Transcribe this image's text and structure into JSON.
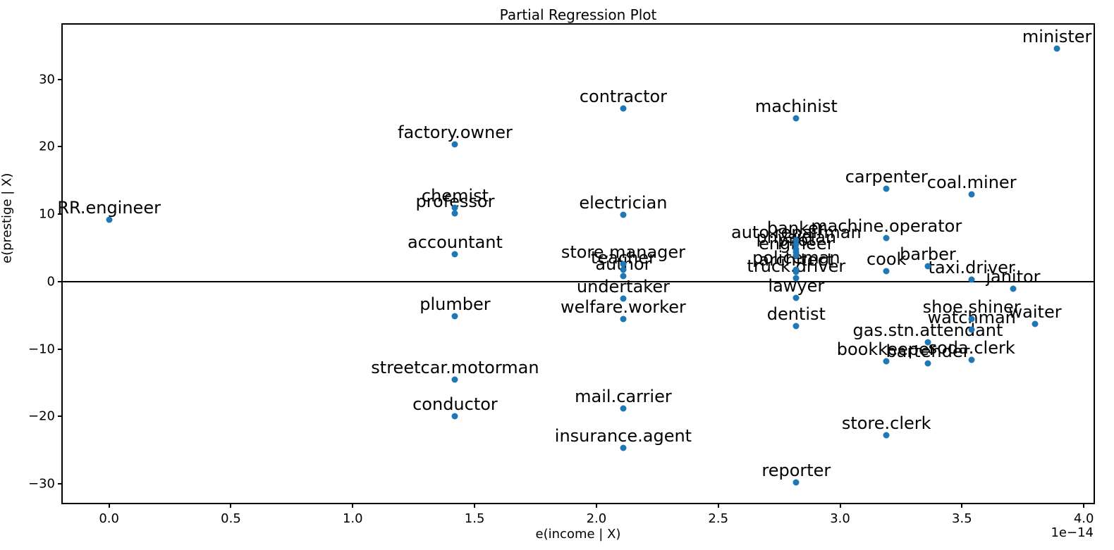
{
  "figure": {
    "title": "Partial Regression Plot",
    "xlabel": "e(income | X)",
    "ylabel": "e(prestige | X)",
    "offset_text": "1e−14",
    "point_color": "#1f77b4",
    "axis_color": "#000000",
    "background": "#ffffff"
  },
  "chart_data": {
    "type": "scatter",
    "title": "Partial Regression Plot",
    "xlabel": "e(income | X)",
    "ylabel": "e(prestige | X)",
    "x_scale_factor": "1e-14",
    "xlim": [
      -0.19,
      4.04
    ],
    "ylim": [
      -32.8,
      38.1
    ],
    "xticks": [
      0.0,
      0.5,
      1.0,
      1.5,
      2.0,
      2.5,
      3.0,
      3.5,
      4.0
    ],
    "yticks": [
      -30,
      -20,
      -10,
      0,
      10,
      20,
      30
    ],
    "grid": false,
    "legend": null,
    "zero_line_y": 0,
    "marker_color": "#1f77b4",
    "points": [
      {
        "label": "RR.engineer",
        "x": 0.0,
        "y": 9.2
      },
      {
        "label": "factory.owner",
        "x": 1.42,
        "y": 20.4
      },
      {
        "label": "chemist",
        "x": 1.42,
        "y": 10.9
      },
      {
        "label": "professor",
        "x": 1.42,
        "y": 10.1
      },
      {
        "label": "accountant",
        "x": 1.42,
        "y": 4.1
      },
      {
        "label": "plumber",
        "x": 1.42,
        "y": -5.1
      },
      {
        "label": "streetcar.motorman",
        "x": 1.42,
        "y": -14.5
      },
      {
        "label": "conductor",
        "x": 1.42,
        "y": -20.0
      },
      {
        "label": "contractor",
        "x": 2.11,
        "y": 25.7
      },
      {
        "label": "electrician",
        "x": 2.11,
        "y": 9.9
      },
      {
        "label": "store.manager",
        "x": 2.11,
        "y": 2.6
      },
      {
        "label": "teacher",
        "x": 2.11,
        "y": 1.8
      },
      {
        "label": "author",
        "x": 2.11,
        "y": 0.8
      },
      {
        "label": "undertaker",
        "x": 2.11,
        "y": -2.5
      },
      {
        "label": "welfare.worker",
        "x": 2.11,
        "y": -5.5
      },
      {
        "label": "mail.carrier",
        "x": 2.11,
        "y": -18.8
      },
      {
        "label": "insurance.agent",
        "x": 2.11,
        "y": -24.7
      },
      {
        "label": "machinist",
        "x": 2.82,
        "y": 24.2
      },
      {
        "label": "banker",
        "x": 2.82,
        "y": 6.2
      },
      {
        "label": "auto.repairman",
        "x": 2.82,
        "y": 5.5
      },
      {
        "label": "physician",
        "x": 2.82,
        "y": 4.8
      },
      {
        "label": "pilot",
        "x": 2.82,
        "y": 4.4
      },
      {
        "label": "engineer",
        "x": 2.82,
        "y": 3.8
      },
      {
        "label": "policeman",
        "x": 2.82,
        "y": 1.8
      },
      {
        "label": "architect",
        "x": 2.82,
        "y": 1.5
      },
      {
        "label": "truck.driver",
        "x": 2.82,
        "y": 0.5
      },
      {
        "label": "lawyer",
        "x": 2.82,
        "y": -2.4
      },
      {
        "label": "dentist",
        "x": 2.82,
        "y": -6.6
      },
      {
        "label": "reporter",
        "x": 2.82,
        "y": -29.8
      },
      {
        "label": "carpenter",
        "x": 3.19,
        "y": 13.8
      },
      {
        "label": "machine.operator",
        "x": 3.19,
        "y": 6.5
      },
      {
        "label": "cook",
        "x": 3.19,
        "y": 1.6
      },
      {
        "label": "bookkeeper",
        "x": 3.19,
        "y": -11.8
      },
      {
        "label": "store.clerk",
        "x": 3.19,
        "y": -22.8
      },
      {
        "label": "barber",
        "x": 3.36,
        "y": 2.3
      },
      {
        "label": "gas.stn.attendant",
        "x": 3.36,
        "y": -9.0
      },
      {
        "label": "bartender",
        "x": 3.36,
        "y": -12.1
      },
      {
        "label": "coal.miner",
        "x": 3.54,
        "y": 12.9
      },
      {
        "label": "taxi.driver",
        "x": 3.54,
        "y": 0.3
      },
      {
        "label": "shoe.shiner",
        "x": 3.54,
        "y": -5.5
      },
      {
        "label": "watchman",
        "x": 3.54,
        "y": -7.1
      },
      {
        "label": "soda.clerk",
        "x": 3.54,
        "y": -11.6
      },
      {
        "label": "janitor",
        "x": 3.71,
        "y": -1.1
      },
      {
        "label": "waiter",
        "x": 3.8,
        "y": -6.3
      },
      {
        "label": "minister",
        "x": 3.89,
        "y": 34.6
      }
    ]
  }
}
